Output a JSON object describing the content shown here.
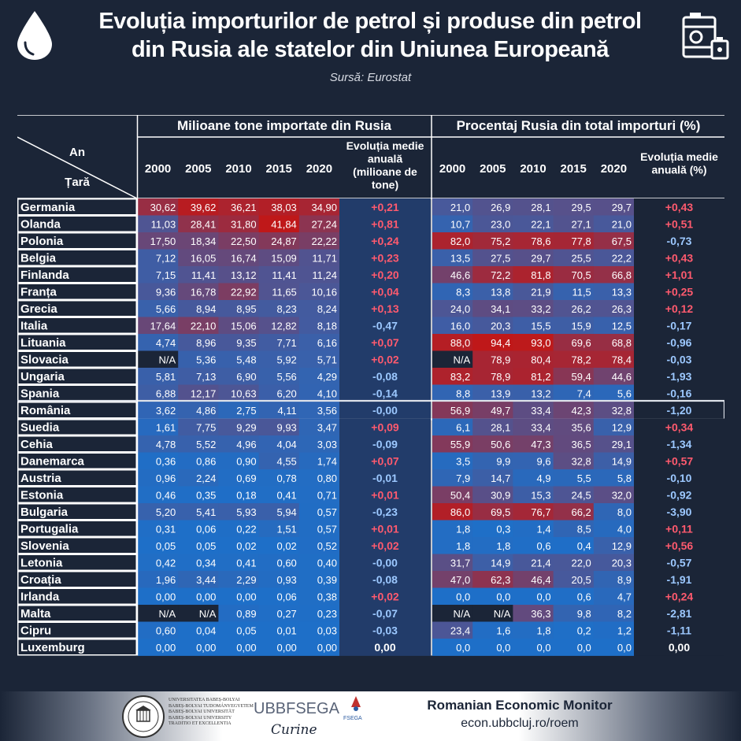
{
  "header": {
    "title_line1": "Evoluția importurilor de petrol și produse din petrol",
    "title_line2": "din Rusia ale statelor din Uniunea Europeană",
    "source": "Sursă: Eurostat"
  },
  "chart_data": {
    "type": "table",
    "group_left": "Milioane tone importate din Rusia",
    "group_right": "Procentaj Rusia din total importuri (%)",
    "corner_top": "An",
    "corner_bottom": "Țară",
    "years": [
      "2000",
      "2005",
      "2010",
      "2015",
      "2020"
    ],
    "left_change_header": "Evoluția medie anuală (milioane de tone)",
    "right_change_header": "Evoluția medie anuală (%)",
    "highlighted_row": "România",
    "colors": {
      "high": "#c01818",
      "low": "#1e6fc8",
      "positive": "#ff5a6e",
      "negative": "#9cc8ff",
      "neutral": "#ffffff"
    },
    "rows": [
      {
        "country": "Germania",
        "tonnes": [
          "30,62",
          "39,62",
          "36,21",
          "38,03",
          "34,90"
        ],
        "tonnes_change": "+0,21",
        "pct": [
          "21,0",
          "26,9",
          "28,1",
          "29,5",
          "29,7"
        ],
        "pct_change": "+0,43"
      },
      {
        "country": "Olanda",
        "tonnes": [
          "11,03",
          "28,41",
          "31,80",
          "41,84",
          "27,24"
        ],
        "tonnes_change": "+0,81",
        "pct": [
          "10,7",
          "23,0",
          "22,1",
          "27,1",
          "21,0"
        ],
        "pct_change": "+0,51"
      },
      {
        "country": "Polonia",
        "tonnes": [
          "17,50",
          "18,34",
          "22,50",
          "24,87",
          "22,22"
        ],
        "tonnes_change": "+0,24",
        "pct": [
          "82,0",
          "75,2",
          "78,6",
          "77,8",
          "67,5"
        ],
        "pct_change": "-0,73"
      },
      {
        "country": "Belgia",
        "tonnes": [
          "7,12",
          "16,05",
          "16,74",
          "15,09",
          "11,71"
        ],
        "tonnes_change": "+0,23",
        "pct": [
          "13,5",
          "27,5",
          "29,7",
          "25,5",
          "22,2"
        ],
        "pct_change": "+0,43"
      },
      {
        "country": "Finlanda",
        "tonnes": [
          "7,15",
          "11,41",
          "13,12",
          "11,41",
          "11,24"
        ],
        "tonnes_change": "+0,20",
        "pct": [
          "46,6",
          "72,2",
          "81,8",
          "70,5",
          "66,8"
        ],
        "pct_change": "+1,01"
      },
      {
        "country": "Franța",
        "tonnes": [
          "9,36",
          "16,78",
          "22,92",
          "11,65",
          "10,16"
        ],
        "tonnes_change": "+0,04",
        "pct": [
          "8,3",
          "13,8",
          "21,9",
          "11,5",
          "13,3"
        ],
        "pct_change": "+0,25"
      },
      {
        "country": "Grecia",
        "tonnes": [
          "5,66",
          "8,94",
          "8,95",
          "8,23",
          "8,24"
        ],
        "tonnes_change": "+0,13",
        "pct": [
          "24,0",
          "34,1",
          "33,2",
          "26,2",
          "26,3"
        ],
        "pct_change": "+0,12"
      },
      {
        "country": "Italia",
        "tonnes": [
          "17,64",
          "22,10",
          "15,06",
          "12,82",
          "8,18"
        ],
        "tonnes_change": "-0,47",
        "pct": [
          "16,0",
          "20,3",
          "15,5",
          "15,9",
          "12,5"
        ],
        "pct_change": "-0,17"
      },
      {
        "country": "Lituania",
        "tonnes": [
          "4,74",
          "8,96",
          "9,35",
          "7,71",
          "6,16"
        ],
        "tonnes_change": "+0,07",
        "pct": [
          "88,0",
          "94,4",
          "93,0",
          "69,6",
          "68,8"
        ],
        "pct_change": "-0,96"
      },
      {
        "country": "Slovacia",
        "tonnes": [
          "N/A",
          "5,36",
          "5,48",
          "5,92",
          "5,71"
        ],
        "tonnes_change": "+0,02",
        "pct": [
          "N/A",
          "78,9",
          "80,4",
          "78,2",
          "78,4"
        ],
        "pct_change": "-0,03"
      },
      {
        "country": "Ungaria",
        "tonnes": [
          "5,81",
          "7,13",
          "6,90",
          "5,56",
          "4,29"
        ],
        "tonnes_change": "-0,08",
        "pct": [
          "83,2",
          "78,9",
          "81,2",
          "59,4",
          "44,6"
        ],
        "pct_change": "-1,93"
      },
      {
        "country": "Spania",
        "tonnes": [
          "6,88",
          "12,17",
          "10,63",
          "6,20",
          "4,10"
        ],
        "tonnes_change": "-0,14",
        "pct": [
          "8,8",
          "13,9",
          "13,2",
          "7,4",
          "5,6"
        ],
        "pct_change": "-0,16"
      },
      {
        "country": "România",
        "tonnes": [
          "3,62",
          "4,86",
          "2,75",
          "4,11",
          "3,56"
        ],
        "tonnes_change": "-0,00",
        "pct": [
          "56,9",
          "49,7",
          "33,4",
          "42,3",
          "32,8"
        ],
        "pct_change": "-1,20"
      },
      {
        "country": "Suedia",
        "tonnes": [
          "1,61",
          "7,75",
          "9,29",
          "9,93",
          "3,47"
        ],
        "tonnes_change": "+0,09",
        "pct": [
          "6,1",
          "28,1",
          "33,4",
          "35,6",
          "12,9"
        ],
        "pct_change": "+0,34"
      },
      {
        "country": "Cehia",
        "tonnes": [
          "4,78",
          "5,52",
          "4,96",
          "4,04",
          "3,03"
        ],
        "tonnes_change": "-0,09",
        "pct": [
          "55,9",
          "50,6",
          "47,3",
          "36,5",
          "29,1"
        ],
        "pct_change": "-1,34"
      },
      {
        "country": "Danemarca",
        "tonnes": [
          "0,36",
          "0,86",
          "0,90",
          "4,55",
          "1,74"
        ],
        "tonnes_change": "+0,07",
        "pct": [
          "3,5",
          "9,9",
          "9,6",
          "32,8",
          "14,9"
        ],
        "pct_change": "+0,57"
      },
      {
        "country": "Austria",
        "tonnes": [
          "0,96",
          "2,24",
          "0,69",
          "0,78",
          "0,80"
        ],
        "tonnes_change": "-0,01",
        "pct": [
          "7,9",
          "14,7",
          "4,9",
          "5,5",
          "5,8"
        ],
        "pct_change": "-0,10"
      },
      {
        "country": "Estonia",
        "tonnes": [
          "0,46",
          "0,35",
          "0,18",
          "0,41",
          "0,71"
        ],
        "tonnes_change": "+0,01",
        "pct": [
          "50,4",
          "30,9",
          "15,3",
          "24,5",
          "32,0"
        ],
        "pct_change": "-0,92"
      },
      {
        "country": "Bulgaria",
        "tonnes": [
          "5,20",
          "5,41",
          "5,93",
          "5,94",
          "0,57"
        ],
        "tonnes_change": "-0,23",
        "pct": [
          "86,0",
          "69,5",
          "76,7",
          "66,2",
          "8,0"
        ],
        "pct_change": "-3,90"
      },
      {
        "country": "Portugalia",
        "tonnes": [
          "0,31",
          "0,06",
          "0,22",
          "1,51",
          "0,57"
        ],
        "tonnes_change": "+0,01",
        "pct": [
          "1,8",
          "0,3",
          "1,4",
          "8,5",
          "4,0"
        ],
        "pct_change": "+0,11"
      },
      {
        "country": "Slovenia",
        "tonnes": [
          "0,05",
          "0,05",
          "0,02",
          "0,02",
          "0,52"
        ],
        "tonnes_change": "+0,02",
        "pct": [
          "1,8",
          "1,8",
          "0,6",
          "0,4",
          "12,9"
        ],
        "pct_change": "+0,56"
      },
      {
        "country": "Letonia",
        "tonnes": [
          "0,42",
          "0,34",
          "0,41",
          "0,60",
          "0,40"
        ],
        "tonnes_change": "-0,00",
        "pct": [
          "31,7",
          "14,9",
          "21,4",
          "22,0",
          "20,3"
        ],
        "pct_change": "-0,57"
      },
      {
        "country": "Croația",
        "tonnes": [
          "1,96",
          "3,44",
          "2,29",
          "0,93",
          "0,39"
        ],
        "tonnes_change": "-0,08",
        "pct": [
          "47,0",
          "62,3",
          "46,4",
          "20,5",
          "8,9"
        ],
        "pct_change": "-1,91"
      },
      {
        "country": "Irlanda",
        "tonnes": [
          "0,00",
          "0,00",
          "0,00",
          "0,06",
          "0,38"
        ],
        "tonnes_change": "+0,02",
        "pct": [
          "0,0",
          "0,0",
          "0,0",
          "0,6",
          "4,7"
        ],
        "pct_change": "+0,24"
      },
      {
        "country": "Malta",
        "tonnes": [
          "N/A",
          "N/A",
          "0,89",
          "0,27",
          "0,23"
        ],
        "tonnes_change": "-0,07",
        "pct": [
          "N/A",
          "N/A",
          "36,3",
          "9,8",
          "8,2"
        ],
        "pct_change": "-2,81"
      },
      {
        "country": "Cipru",
        "tonnes": [
          "0,60",
          "0,04",
          "0,05",
          "0,01",
          "0,03"
        ],
        "tonnes_change": "-0,03",
        "pct": [
          "23,4",
          "1,6",
          "1,8",
          "0,2",
          "1,2"
        ],
        "pct_change": "-1,11"
      },
      {
        "country": "Luxemburg",
        "tonnes": [
          "0,00",
          "0,00",
          "0,00",
          "0,00",
          "0,00"
        ],
        "tonnes_change": "0,00",
        "pct": [
          "0,0",
          "0,0",
          "0,0",
          "0,0",
          "0,0"
        ],
        "pct_change": "0,00"
      }
    ]
  },
  "footer": {
    "university_lines": [
      "UNIVERSITATEA BABEȘ-BOLYAI",
      "BABEȘ-BOLYAI TUDOMÁNYEGYETEM",
      "BABEȘ-BOLYAI UNIVERSITÄT",
      "BABEȘ-BOLYAI UNIVERSITY",
      "TRADITIO ET EXCELLENTIA"
    ],
    "fsega_logo_text": "UBBFSEGA",
    "fsega_signature": "Curine",
    "rem_title": "Romanian Economic Monitor",
    "rem_url": "econ.ubbcluj.ro/roem"
  }
}
